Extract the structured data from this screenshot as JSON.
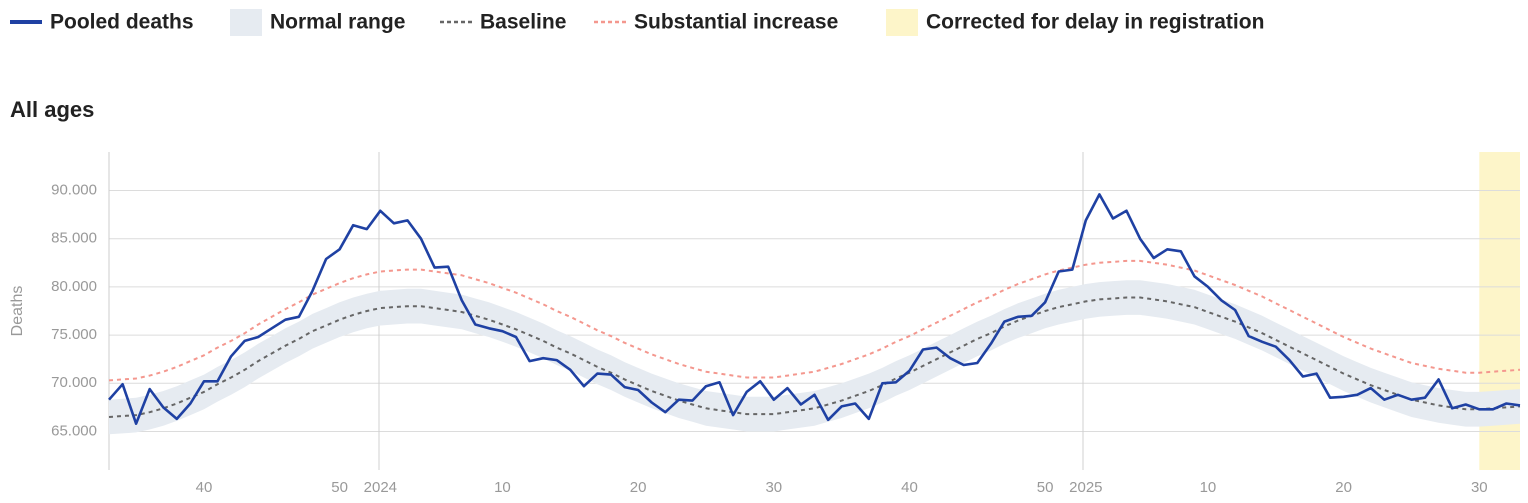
{
  "chart_data": {
    "type": "line",
    "subtitle": "All ages",
    "y_label": "Deaths",
    "categories": [
      null,
      null,
      null,
      null,
      null,
      null,
      null,
      "40",
      null,
      null,
      null,
      null,
      null,
      null,
      null,
      null,
      null,
      "50",
      null,
      null,
      "2024",
      null,
      null,
      null,
      null,
      null,
      null,
      null,
      null,
      "10",
      null,
      null,
      null,
      null,
      null,
      null,
      null,
      null,
      null,
      "20",
      null,
      null,
      null,
      null,
      null,
      null,
      null,
      null,
      null,
      "30",
      null,
      null,
      null,
      null,
      null,
      null,
      null,
      null,
      null,
      "40",
      null,
      null,
      null,
      null,
      null,
      null,
      null,
      null,
      null,
      "50",
      null,
      null,
      "2025",
      null,
      null,
      null,
      null,
      null,
      null,
      null,
      null,
      "10",
      null,
      null,
      null,
      null,
      null,
      null,
      null,
      null,
      null,
      "20",
      null,
      null,
      null,
      null,
      null,
      null,
      null,
      null,
      null,
      "30",
      null,
      null,
      null
    ],
    "ylim": [
      61000,
      94000
    ],
    "yticks": [
      {
        "value": 65000,
        "label": "65.000"
      },
      {
        "value": 70000,
        "label": "70.000"
      },
      {
        "value": 75000,
        "label": "75.000"
      },
      {
        "value": 80000,
        "label": "80.000"
      },
      {
        "value": 85000,
        "label": "85.000"
      },
      {
        "value": 90000,
        "label": "90.000"
      }
    ],
    "grid": true,
    "series": [
      {
        "name": "Pooled deaths",
        "color": "#1f41a3",
        "values": [
          68300,
          69900,
          65800,
          69400,
          67500,
          66300,
          67900,
          70200,
          70200,
          72800,
          74400,
          74800,
          75700,
          76600,
          76900,
          79600,
          82900,
          83900,
          86400,
          86000,
          87900,
          86600,
          86900,
          85000,
          82000,
          82100,
          78600,
          76100,
          75700,
          75400,
          74800,
          72300,
          72600,
          72400,
          71400,
          69700,
          71000,
          70900,
          69600,
          69300,
          68000,
          67000,
          68300,
          68200,
          69700,
          70100,
          66700,
          69100,
          70200,
          68300,
          69500,
          67800,
          68800,
          66200,
          67600,
          67900,
          66300,
          70000,
          70100,
          71300,
          73500,
          73700,
          72600,
          71900,
          72100,
          74100,
          76400,
          76900,
          77000,
          78400,
          81600,
          81800,
          86900,
          89600,
          87100,
          87900,
          85000,
          83000,
          83900,
          83700,
          81100,
          80000,
          78600,
          77600,
          74900,
          74300,
          73800,
          72400,
          70700,
          71000,
          68500,
          68600,
          68800,
          69500,
          68300,
          68800,
          68300,
          68500,
          70400,
          67400,
          67800,
          67300,
          67300,
          67900,
          67700
        ]
      },
      {
        "name": "Normal range",
        "color": "#e6ebf1",
        "lower": [
          64700,
          64800,
          64900,
          65200,
          65600,
          66100,
          66700,
          67300,
          68100,
          68800,
          69600,
          70500,
          71300,
          72100,
          72800,
          73600,
          74200,
          74800,
          75300,
          75700,
          76000,
          76100,
          76200,
          76200,
          76000,
          75800,
          75600,
          75200,
          74800,
          74300,
          73800,
          73200,
          72600,
          71900,
          71300,
          70600,
          69900,
          69300,
          68600,
          68000,
          67400,
          66900,
          66400,
          66000,
          65600,
          65400,
          65200,
          65000,
          65000,
          65000,
          65200,
          65400,
          65600,
          66000,
          66400,
          66900,
          67400,
          68000,
          68700,
          69300,
          70000,
          70700,
          71400,
          72100,
          72800,
          73400,
          74100,
          74700,
          75200,
          75700,
          76100,
          76400,
          76700,
          76900,
          77000,
          77100,
          77100,
          76900,
          76700,
          76400,
          76100,
          75600,
          75100,
          74600,
          74000,
          73400,
          72700,
          72000,
          71300,
          70600,
          69900,
          69200,
          68600,
          68000,
          67500,
          67000,
          66500,
          66200,
          65900,
          65700,
          65500,
          65500,
          65600,
          65700,
          65800
        ],
        "upper": [
          68300,
          68400,
          68500,
          68800,
          69200,
          69700,
          70300,
          70900,
          71700,
          72400,
          73200,
          74100,
          74900,
          75700,
          76400,
          77200,
          77800,
          78400,
          78900,
          79300,
          79600,
          79700,
          79800,
          79800,
          79600,
          79400,
          79200,
          78800,
          78400,
          77900,
          77400,
          76800,
          76200,
          75500,
          74900,
          74200,
          73500,
          72900,
          72200,
          71600,
          71000,
          70500,
          70000,
          69600,
          69200,
          69000,
          68800,
          68600,
          68600,
          68600,
          68800,
          69000,
          69200,
          69600,
          70000,
          70500,
          71000,
          71600,
          72300,
          72900,
          73600,
          74300,
          75000,
          75700,
          76400,
          77000,
          77700,
          78300,
          78800,
          79300,
          79700,
          80000,
          80300,
          80500,
          80600,
          80700,
          80700,
          80500,
          80300,
          80000,
          79700,
          79200,
          78700,
          78200,
          77600,
          77000,
          76300,
          75600,
          74900,
          74200,
          73500,
          72800,
          72200,
          71600,
          71100,
          70600,
          70100,
          69800,
          69500,
          69300,
          69100,
          69100,
          69200,
          69300,
          69400
        ]
      },
      {
        "name": "Baseline",
        "color": "#666666",
        "dashed": true,
        "values": [
          66500,
          66600,
          66700,
          67000,
          67400,
          67900,
          68500,
          69100,
          69900,
          70600,
          71400,
          72300,
          73100,
          73900,
          74600,
          75400,
          76000,
          76600,
          77100,
          77500,
          77800,
          77900,
          78000,
          78000,
          77800,
          77600,
          77400,
          77000,
          76600,
          76100,
          75600,
          75000,
          74400,
          73700,
          73100,
          72400,
          71700,
          71100,
          70400,
          69800,
          69200,
          68700,
          68200,
          67800,
          67400,
          67200,
          67000,
          66800,
          66800,
          66800,
          67000,
          67200,
          67400,
          67800,
          68200,
          68700,
          69200,
          69800,
          70500,
          71100,
          71800,
          72500,
          73200,
          73900,
          74600,
          75200,
          75900,
          76500,
          77000,
          77500,
          77900,
          78200,
          78500,
          78700,
          78800,
          78900,
          78900,
          78700,
          78500,
          78200,
          77900,
          77400,
          76900,
          76400,
          75800,
          75200,
          74500,
          73800,
          73100,
          72400,
          71700,
          71000,
          70400,
          69800,
          69300,
          68800,
          68300,
          68000,
          67700,
          67500,
          67300,
          67300,
          67400,
          67500,
          67600
        ]
      },
      {
        "name": "Substantial increase",
        "color": "#f4978e",
        "dashed": true,
        "values": [
          70300,
          70400,
          70500,
          70800,
          71200,
          71700,
          72300,
          72900,
          73700,
          74400,
          75200,
          76100,
          76900,
          77700,
          78400,
          79200,
          79800,
          80400,
          80900,
          81300,
          81600,
          81700,
          81800,
          81800,
          81600,
          81400,
          81200,
          80800,
          80400,
          79900,
          79400,
          78800,
          78200,
          77500,
          76900,
          76200,
          75500,
          74900,
          74200,
          73600,
          73000,
          72500,
          72000,
          71600,
          71200,
          71000,
          70800,
          70600,
          70600,
          70600,
          70800,
          71000,
          71200,
          71600,
          72000,
          72500,
          73000,
          73600,
          74300,
          74900,
          75600,
          76300,
          77000,
          77700,
          78400,
          79000,
          79700,
          80300,
          80800,
          81300,
          81700,
          82000,
          82300,
          82500,
          82600,
          82700,
          82700,
          82500,
          82300,
          82000,
          81700,
          81200,
          80700,
          80200,
          79600,
          79000,
          78300,
          77600,
          76900,
          76200,
          75500,
          74800,
          74200,
          73600,
          73100,
          72600,
          72100,
          71800,
          71500,
          71300,
          71100,
          71100,
          71200,
          71300,
          71400
        ]
      }
    ],
    "highlight": {
      "name": "Corrected for delay in registration",
      "color": "#fdf5c9",
      "x_range": [
        101,
        104
      ]
    }
  }
}
